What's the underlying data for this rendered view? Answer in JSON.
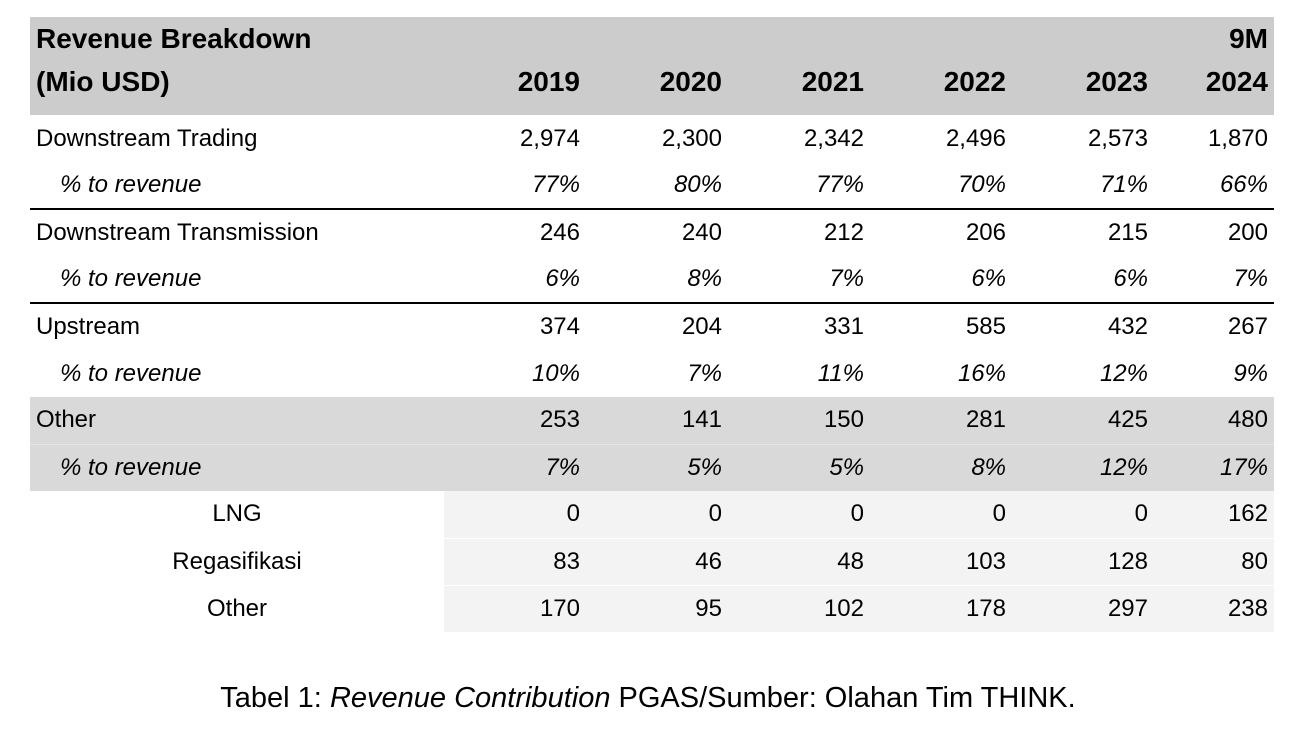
{
  "header": {
    "title_line1": "Revenue Breakdown",
    "title_line2": "(Mio USD)",
    "years": [
      "2019",
      "2020",
      "2021",
      "2022",
      "2023",
      "9M 2024"
    ]
  },
  "rows": {
    "downstream_trading": {
      "label": "Downstream Trading",
      "values": [
        "2,974",
        "2,300",
        "2,342",
        "2,496",
        "2,573",
        "1,870"
      ],
      "pct_label": "% to revenue",
      "pct": [
        "77%",
        "80%",
        "77%",
        "70%",
        "71%",
        "66%"
      ]
    },
    "downstream_transmission": {
      "label": "Downstream Transmission",
      "values": [
        "246",
        "240",
        "212",
        "206",
        "215",
        "200"
      ],
      "pct_label": "% to revenue",
      "pct": [
        "6%",
        "8%",
        "7%",
        "6%",
        "6%",
        "7%"
      ]
    },
    "upstream": {
      "label": "Upstream",
      "values": [
        "374",
        "204",
        "331",
        "585",
        "432",
        "267"
      ],
      "pct_label": "% to revenue",
      "pct": [
        "10%",
        "7%",
        "11%",
        "16%",
        "12%",
        "9%"
      ]
    },
    "other": {
      "label": "Other",
      "values": [
        "253",
        "141",
        "150",
        "281",
        "425",
        "480"
      ],
      "pct_label": "% to revenue",
      "pct": [
        "7%",
        "5%",
        "5%",
        "8%",
        "12%",
        "17%"
      ]
    },
    "sub_lng": {
      "label": "LNG",
      "values": [
        "0",
        "0",
        "0",
        "0",
        "0",
        "162"
      ]
    },
    "sub_regasifikasi": {
      "label": "Regasifikasi",
      "values": [
        "83",
        "46",
        "48",
        "103",
        "128",
        "80"
      ]
    },
    "sub_other": {
      "label": "Other",
      "values": [
        "170",
        "95",
        "102",
        "178",
        "297",
        "238"
      ]
    }
  },
  "caption": {
    "prefix": "Tabel 1: ",
    "emphasis": "Revenue Contribution",
    "suffix": " PGAS/Sumber: Olahan Tim THINK."
  },
  "colors": {
    "header_bg": "#cccccc",
    "other_bg": "#d9d9d9",
    "sub_bg": "#f3f3f3",
    "rule": "#000000"
  }
}
